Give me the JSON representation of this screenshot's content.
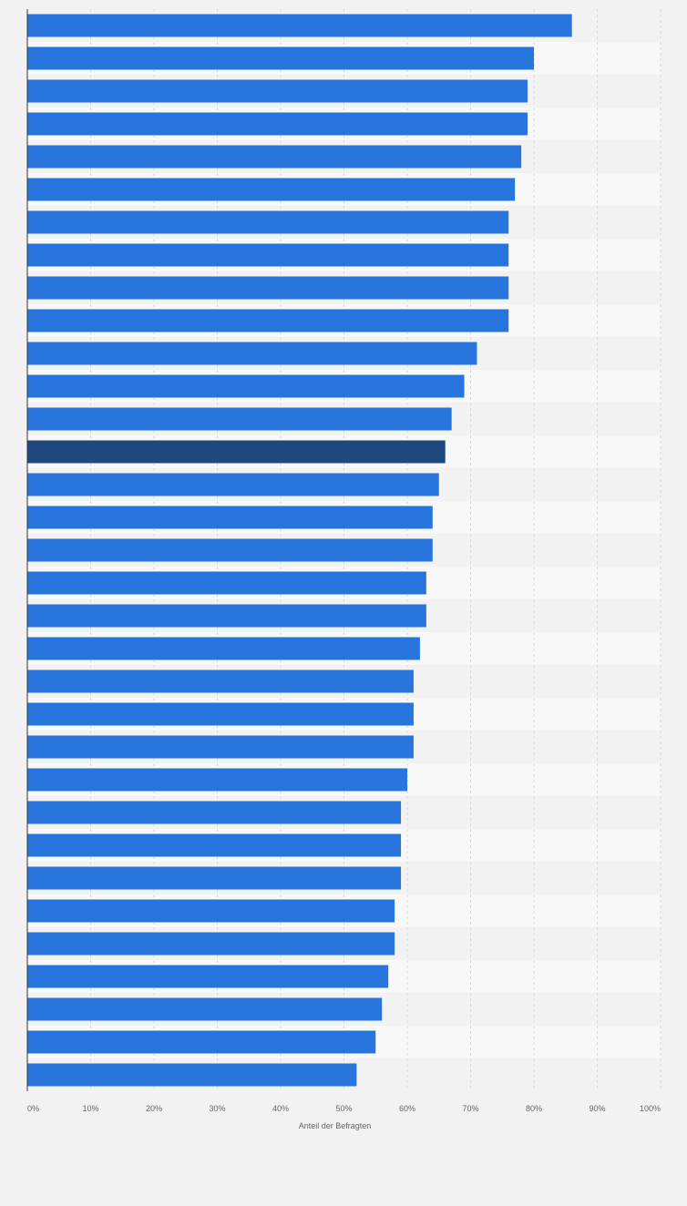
{
  "chart_data": {
    "type": "bar",
    "orientation": "horizontal",
    "xlabel": "Anteil der Befragten",
    "xlim": [
      0,
      100
    ],
    "x_ticks": [
      "0%",
      "10%",
      "20%",
      "30%",
      "40%",
      "50%",
      "60%",
      "70%",
      "80%",
      "90%",
      "100%"
    ],
    "grid": true,
    "values": [
      86,
      80,
      79,
      79,
      78,
      77,
      76,
      76,
      76,
      76,
      71,
      69,
      67,
      66,
      65,
      64,
      64,
      63,
      63,
      62,
      61,
      61,
      61,
      60,
      59,
      59,
      59,
      58,
      58,
      57,
      56,
      55,
      52
    ],
    "highlight_index": 13,
    "colors": {
      "bar": "#2876dd",
      "highlight": "#1f497d",
      "background": "#f2f2f2",
      "band_light": "#f8f8f8",
      "band_dark": "#f2f2f2",
      "grid": "#d8d8d8",
      "axis": "#333333",
      "tick_text": "#666666"
    }
  }
}
